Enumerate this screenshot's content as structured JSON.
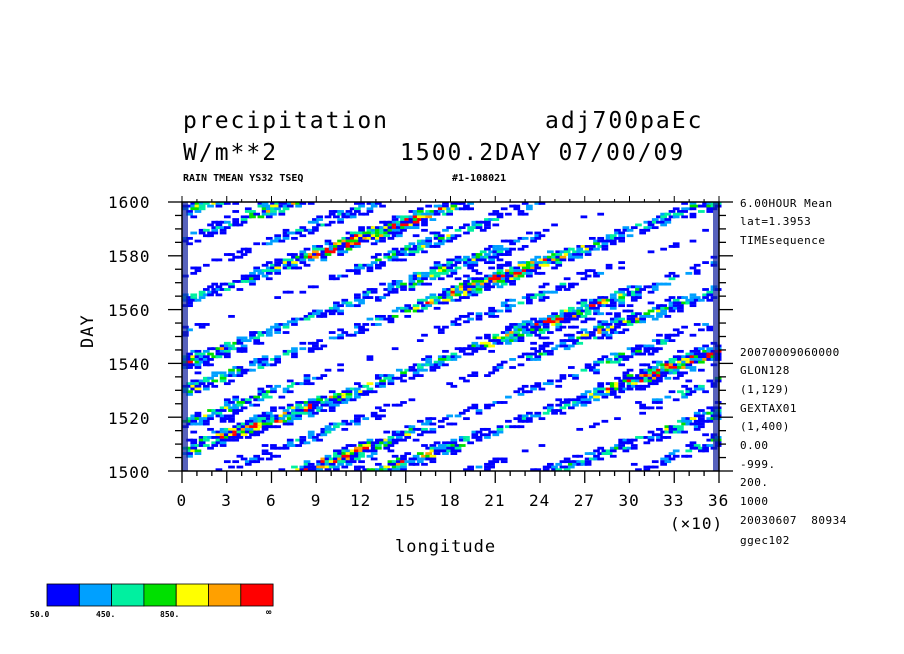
{
  "header": {
    "var_name": "precipitation",
    "experiment": "adj700paEc",
    "units": "W/m**2",
    "time_info": "1500.2DAY 07/00/09",
    "subtitle_left": "RAIN TMEAN YS32 TSEQ",
    "subtitle_right": "#1-108021"
  },
  "side_info": {
    "top": [
      "6.00HOUR Mean",
      "lat=1.3953",
      "TIMEsequence"
    ],
    "bottom": [
      "20070009060000",
      "GLON128",
      "(1,129)",
      "GEXTAX01",
      "(1,400)",
      "0.00",
      "-999.",
      "200.",
      "1000",
      "20030607  80934",
      "ggec102"
    ]
  },
  "chart_data": {
    "type": "heatmap",
    "xlabel": "longitude",
    "ylabel": "DAY",
    "x_multiplier_label": "(×10)",
    "xlim": [
      0,
      36
    ],
    "ylim": [
      1500,
      1600
    ],
    "x_ticks": [
      "0",
      "3",
      "6",
      "9",
      "12",
      "15",
      "18",
      "21",
      "24",
      "27",
      "30",
      "33",
      "36"
    ],
    "y_ticks": [
      "1500",
      "1520",
      "1540",
      "1560",
      "1580",
      "1600"
    ],
    "colorbar": {
      "levels": [
        50,
        250,
        450,
        650,
        850,
        1050,
        1250
      ],
      "colors": [
        "#0000ff",
        "#00a0ff",
        "#00f0a0",
        "#00e000",
        "#ffff00",
        "#ffa000",
        "#ff0000"
      ],
      "labels": [
        "50.0",
        "450.",
        "850.",
        "∞"
      ]
    }
  }
}
